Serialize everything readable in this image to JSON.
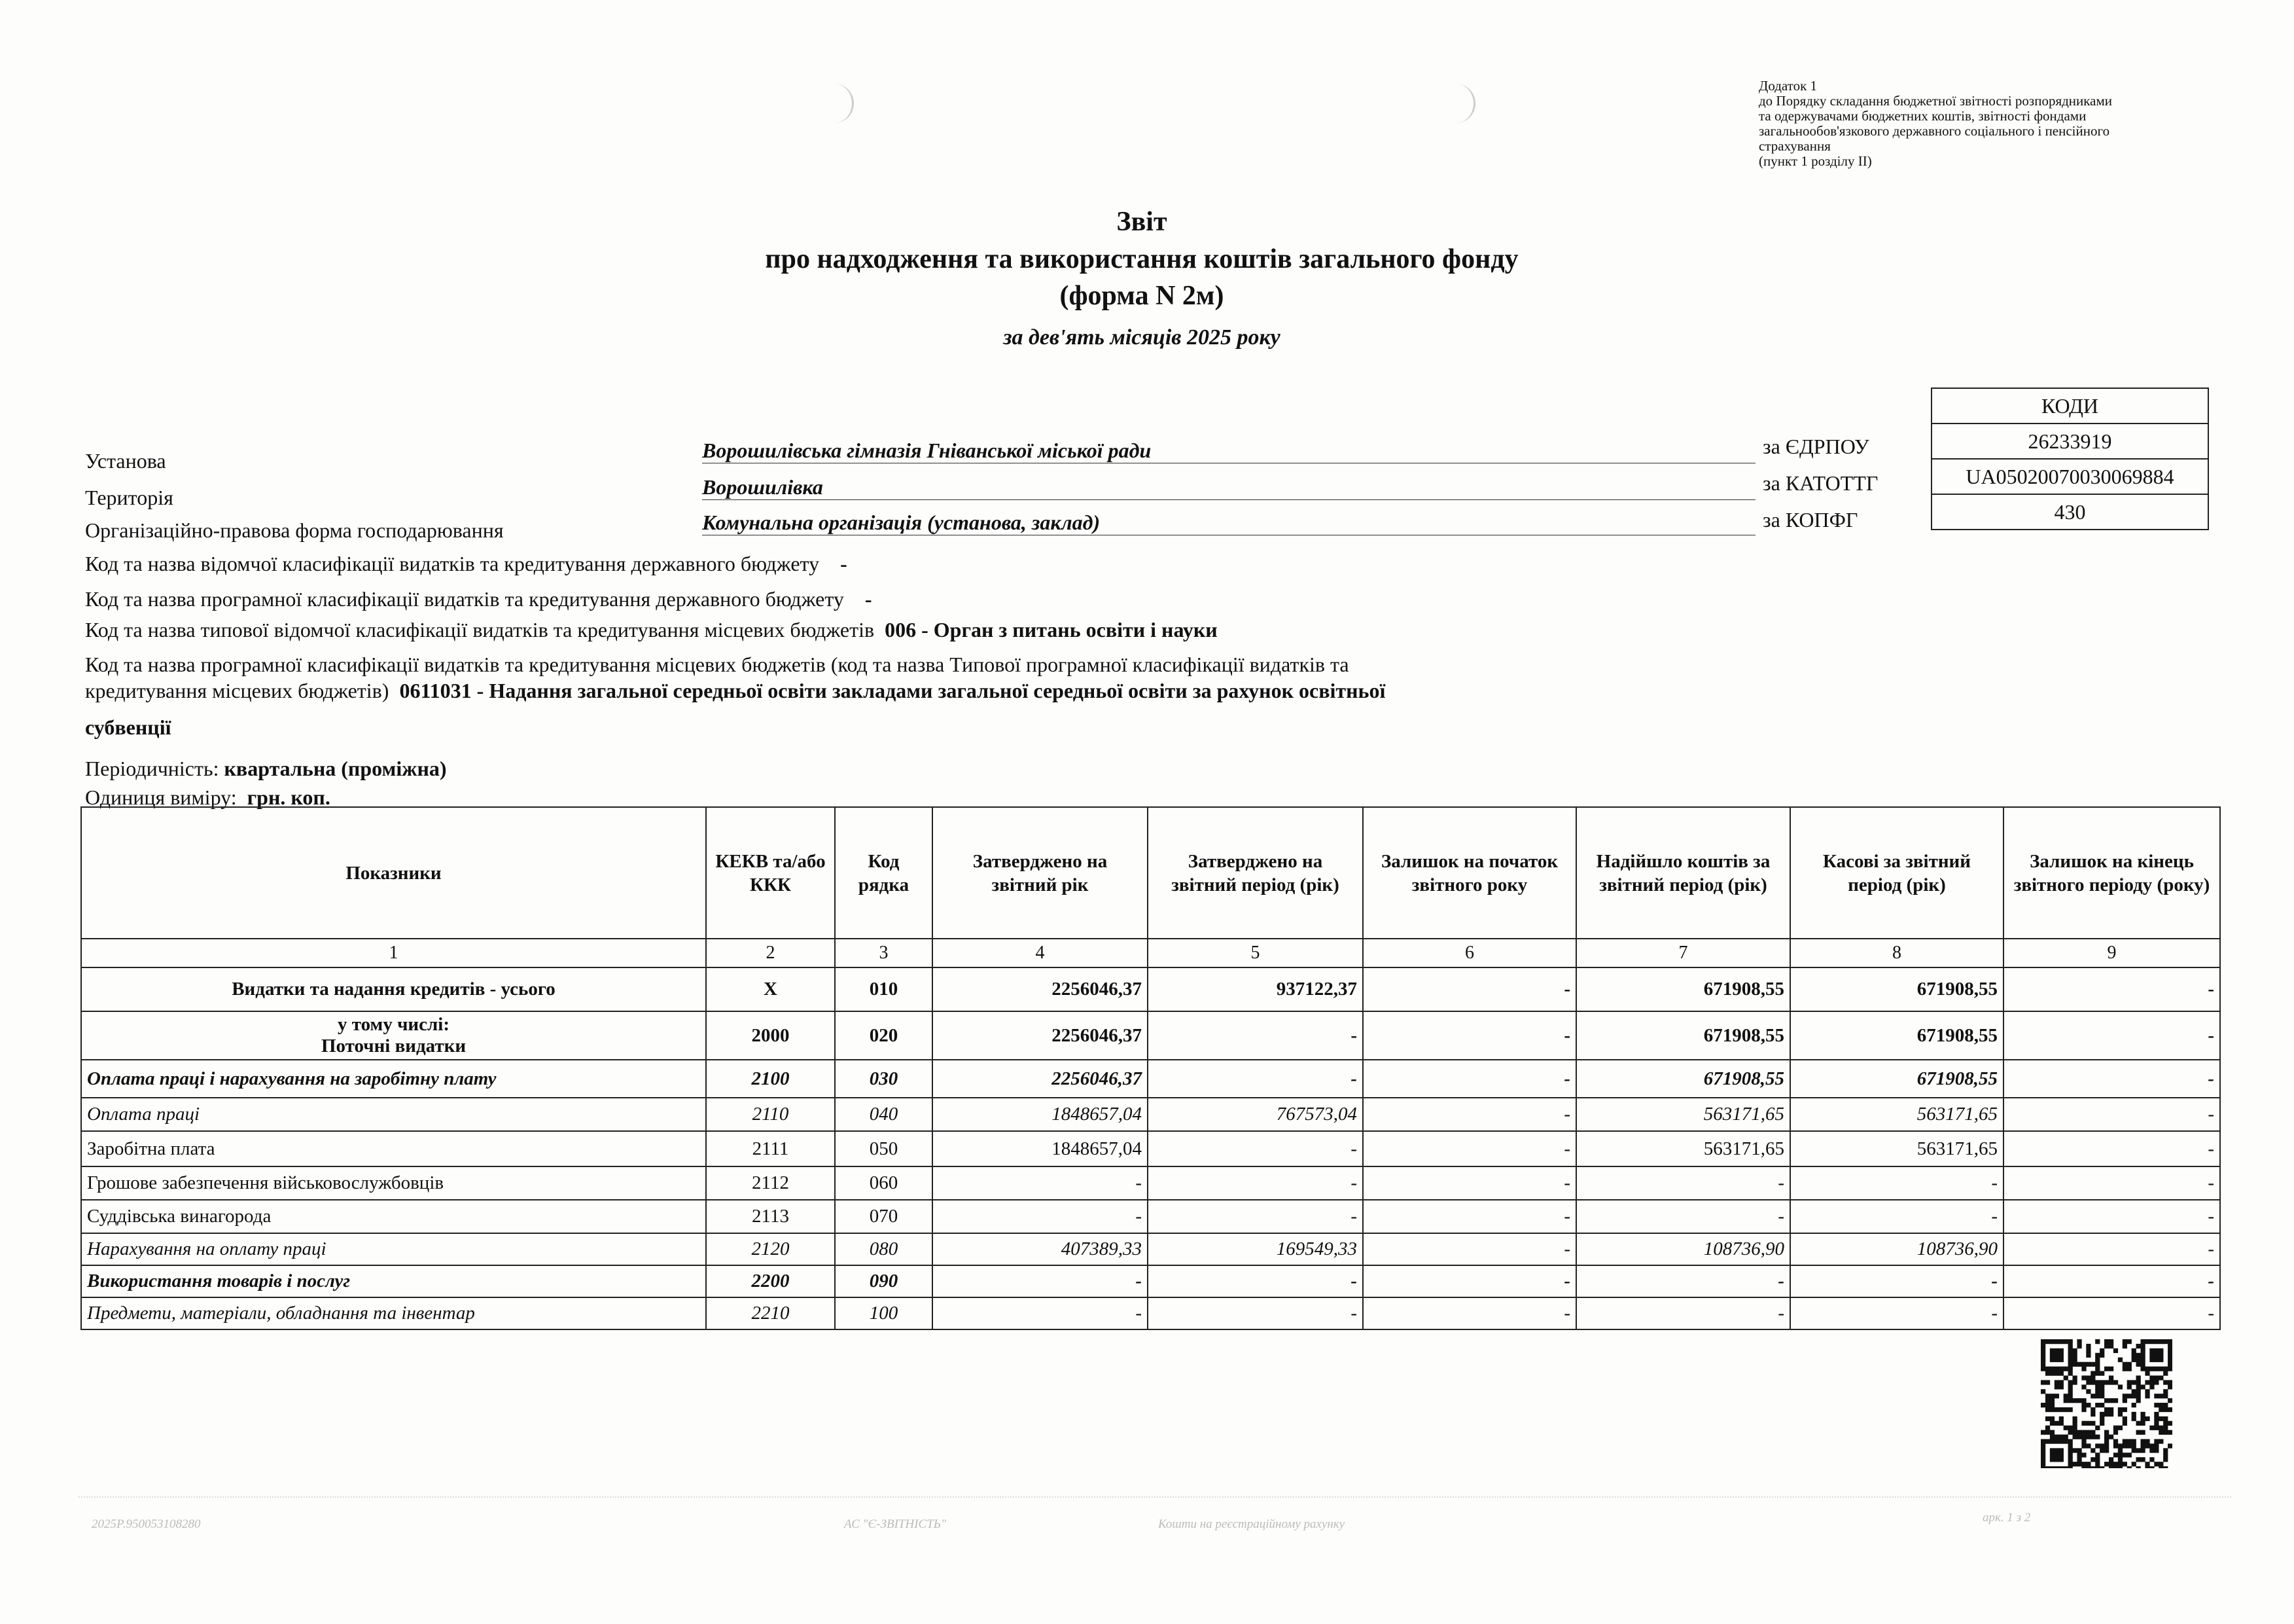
{
  "addendum": [
    "Додаток 1",
    "до Порядку складання бюджетної звітності розпорядниками",
    "та одержувачами бюджетних коштів, звітності фондами",
    "загальнообов'язкового державного соціального і пенсійного",
    "страхування",
    "(пункт 1 розділу II)"
  ],
  "title": {
    "line1": "Звіт",
    "line2": "про надходження та використання коштів загального фонду",
    "line3": "(форма N 2м)",
    "period": "за дев'ять місяців 2025 року"
  },
  "codes": {
    "header": "КОДИ",
    "edrpou_label": "за ЄДРПОУ",
    "edrpou": "26233919",
    "katottg_label": "за КАТОТТГ",
    "katottg": "UA05020070030069884",
    "kopfg_label": "за КОПФГ",
    "kopfg": "430"
  },
  "info": {
    "institution_label": "Установа",
    "institution": "Ворошилівська гімназія Гніванської міської ради",
    "territory_label": "Територія",
    "territory": "Ворошилівка",
    "legal_form_label": "Організаційно-правова  форма господарювання",
    "legal_form": "Комунальна організація (установа, заклад)",
    "line1_label": "Код та назва відомчої класифікації видатків та кредитування державного бюджету",
    "line1_value": "-",
    "line2_label": "Код та назва програмної класифікації видатків та кредитування державного бюджету",
    "line2_value": "-",
    "line3_label": "Код та назва типової відомчої класифікації видатків та кредитування місцевих бюджетів",
    "line3_value": "006 - Орган з питань освіти і науки",
    "line4_label_a": "Код та назва програмної класифікації видатків та кредитування місцевих бюджетів (код та назва Типової програмної класифікації видатків та",
    "line4_label_b": "кредитування місцевих бюджетів)",
    "line4_value_a": "0611031  - Надання загальної середньої освіти закладами загальної середньої освіти за рахунок освітньої",
    "line4_value_b": "субвенції",
    "periodicity_label": "Періодичність:",
    "periodicity": "квартальна (проміжна)",
    "unit_label": "Одиниця виміру:",
    "unit": "грн. коп."
  },
  "table": {
    "headers": [
      "Показники",
      "КЕКВ та/або ККК",
      "Код рядка",
      "Затверджено на звітний рік",
      "Затверджено на звітний період (рік)",
      "Залишок на початок звітного року",
      "Надійшло коштів за звітний період (рік)",
      "Касові за звітний період (рік)",
      "Залишок на кінець звітного періоду (року)"
    ],
    "numbers": [
      "1",
      "2",
      "3",
      "4",
      "5",
      "6",
      "7",
      "8",
      "9"
    ],
    "rows": [
      {
        "style": "b",
        "name": "Видатки та надання кредитів -  усього",
        "kekv": "X",
        "code": "010",
        "c4": "2256046,37",
        "c5": "937122,37",
        "c6": "-",
        "c7": "671908,55",
        "c8": "671908,55",
        "c9": "-"
      },
      {
        "style": "b",
        "name": "у тому числі:\nПоточні видатки",
        "kekv": "2000",
        "code": "020",
        "c4": "2256046,37",
        "c5": "-",
        "c6": "-",
        "c7": "671908,55",
        "c8": "671908,55",
        "c9": "-"
      },
      {
        "style": "bi",
        "name": "Оплата праці і нарахування на заробітну плату",
        "kekv": "2100",
        "code": "030",
        "c4": "2256046,37",
        "c5": "-",
        "c6": "-",
        "c7": "671908,55",
        "c8": "671908,55",
        "c9": "-"
      },
      {
        "style": "i",
        "name": "Оплата праці",
        "kekv": "2110",
        "code": "040",
        "c4": "1848657,04",
        "c5": "767573,04",
        "c6": "-",
        "c7": "563171,65",
        "c8": "563171,65",
        "c9": "-"
      },
      {
        "style": "",
        "name": "Заробітна плата",
        "kekv": "2111",
        "code": "050",
        "c4": "1848657,04",
        "c5": "-",
        "c6": "-",
        "c7": "563171,65",
        "c8": "563171,65",
        "c9": "-"
      },
      {
        "style": "",
        "name": "Грошове  забезпечення військовослужбовців",
        "kekv": "2112",
        "code": "060",
        "c4": "-",
        "c5": "-",
        "c6": "-",
        "c7": "-",
        "c8": "-",
        "c9": "-"
      },
      {
        "style": "",
        "name": "Суддівська винагорода",
        "kekv": "2113",
        "code": "070",
        "c4": "-",
        "c5": "-",
        "c6": "-",
        "c7": "-",
        "c8": "-",
        "c9": "-"
      },
      {
        "style": "i",
        "name": "Нарахування на оплату праці",
        "kekv": "2120",
        "code": "080",
        "c4": "407389,33",
        "c5": "169549,33",
        "c6": "-",
        "c7": "108736,90",
        "c8": "108736,90",
        "c9": "-"
      },
      {
        "style": "bi",
        "name": "Використання товарів і послуг",
        "kekv": "2200",
        "code": "090",
        "c4": "-",
        "c5": "-",
        "c6": "-",
        "c7": "-",
        "c8": "-",
        "c9": "-"
      },
      {
        "style": "i",
        "name": "Предмети, матеріали, обладнання та інвентар",
        "kekv": "2210",
        "code": "100",
        "c4": "-",
        "c5": "-",
        "c6": "-",
        "c7": "-",
        "c8": "-",
        "c9": "-"
      }
    ]
  },
  "footer": {
    "doc_id": "2025Р.950053108280",
    "system": "АС \"Є-ЗВІТНІСТЬ\"",
    "note": "Кошти на реєстраційному рахунку",
    "page": "арк. 1 з 2"
  },
  "qr_code": "qr-code-icon"
}
